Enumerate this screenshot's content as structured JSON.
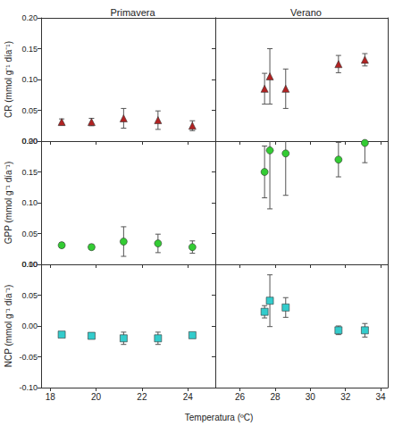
{
  "chart_data": [
    {
      "type": "scatter",
      "title": "Primavera",
      "ylabel": "CR (mmol g⁻¹ día⁻¹)",
      "marker": "triangle",
      "color": "#b22222",
      "xlim": [
        17.6,
        25.2
      ],
      "xticks": [
        18,
        20,
        22,
        24
      ],
      "ylim": [
        0,
        0.2
      ],
      "yticks": [
        {
          "value": 0,
          "label": "0.00"
        },
        {
          "value": 0.05,
          "label": "0.05"
        },
        {
          "value": 0.1,
          "label": "0.10"
        },
        {
          "value": 0.15,
          "label": "0.15"
        },
        {
          "value": 0.2,
          "label": "0.20"
        }
      ],
      "tick_labels": "y",
      "x": [
        18.5,
        19.8,
        21.2,
        22.7,
        24.2
      ],
      "values": [
        0.031,
        0.031,
        0.037,
        0.034,
        0.025
      ],
      "errors": [
        0.005,
        0.006,
        0.016,
        0.015,
        0.008
      ]
    },
    {
      "type": "scatter",
      "title": "Verano",
      "marker": "triangle",
      "color": "#b22222",
      "xlim": [
        24.6,
        34.4
      ],
      "xticks": [
        26,
        28,
        30,
        32,
        34
      ],
      "ylim": [
        0,
        0.2
      ],
      "yticks": [
        {
          "value": 0,
          "label": "0.00"
        },
        {
          "value": 0.05,
          "label": "0.05"
        },
        {
          "value": 0.1,
          "label": "0.10"
        },
        {
          "value": 0.15,
          "label": "0.15"
        },
        {
          "value": 0.2,
          "label": "0.20"
        }
      ],
      "tick_labels": false,
      "x": [
        27.4,
        27.7,
        28.6,
        31.6,
        33.1
      ],
      "values": [
        0.085,
        0.105,
        0.085,
        0.125,
        0.132
      ],
      "errors": [
        0.025,
        0.045,
        0.032,
        0.014,
        0.01
      ]
    },
    {
      "type": "scatter",
      "ylabel": "GPP (mmol g⁻¹ día⁻¹)",
      "marker": "circle",
      "color": "#33cc33",
      "xlim": [
        17.6,
        25.2
      ],
      "xticks": [
        18,
        20,
        22,
        24
      ],
      "ylim": [
        0,
        0.2
      ],
      "yticks": [
        {
          "value": 0,
          "label": "0.00"
        },
        {
          "value": 0.05,
          "label": "0.05"
        },
        {
          "value": 0.1,
          "label": "0.10"
        },
        {
          "value": 0.15,
          "label": "0.15"
        },
        {
          "value": 0.2,
          "label": "0.20"
        }
      ],
      "tick_labels": "y",
      "x": [
        18.5,
        19.8,
        21.2,
        22.7,
        24.2
      ],
      "values": [
        0.031,
        0.028,
        0.037,
        0.034,
        0.028
      ],
      "errors": [
        0.004,
        0.004,
        0.024,
        0.015,
        0.01
      ]
    },
    {
      "type": "scatter",
      "marker": "circle",
      "color": "#33cc33",
      "xlim": [
        24.6,
        34.4
      ],
      "xticks": [
        26,
        28,
        30,
        32,
        34
      ],
      "ylim": [
        0,
        0.2
      ],
      "yticks": [
        {
          "value": 0,
          "label": "0.00"
        },
        {
          "value": 0.05,
          "label": "0.05"
        },
        {
          "value": 0.1,
          "label": "0.10"
        },
        {
          "value": 0.15,
          "label": "0.15"
        },
        {
          "value": 0.2,
          "label": "0.20"
        }
      ],
      "tick_labels": false,
      "x": [
        27.4,
        27.7,
        28.6,
        31.6,
        33.1
      ],
      "values": [
        0.15,
        0.185,
        0.18,
        0.17,
        0.197
      ],
      "errors": [
        0.042,
        0.095,
        0.068,
        0.028,
        0.032
      ]
    },
    {
      "type": "scatter",
      "ylabel": "NCP (mmol g⁻¹ día⁻¹)",
      "xlabel": "Temperatura (ºC)",
      "marker": "square",
      "color": "#33cccc",
      "xlim": [
        17.6,
        25.2
      ],
      "xticks": [
        18,
        20,
        22,
        24
      ],
      "ylim": [
        -0.1,
        0.1
      ],
      "yticks": [
        {
          "value": -0.1,
          "label": "-0.10"
        },
        {
          "value": -0.05,
          "label": "-0.05"
        },
        {
          "value": 0,
          "label": "0.00"
        },
        {
          "value": 0.05,
          "label": "0.05"
        },
        {
          "value": 0.1,
          "label": "0.10"
        }
      ],
      "tick_labels": true,
      "x": [
        18.5,
        19.8,
        21.2,
        22.7,
        24.2
      ],
      "values": [
        -0.014,
        -0.016,
        -0.02,
        -0.02,
        -0.015
      ],
      "errors": [
        0.003,
        0.005,
        0.01,
        0.01,
        0.004
      ]
    },
    {
      "type": "scatter",
      "marker": "square",
      "color": "#33cccc",
      "xlim": [
        24.6,
        34.4
      ],
      "xticks": [
        26,
        28,
        30,
        32,
        34
      ],
      "ylim": [
        -0.1,
        0.1
      ],
      "yticks": [
        {
          "value": -0.1,
          "label": "-0.10"
        },
        {
          "value": -0.05,
          "label": "-0.05"
        },
        {
          "value": 0,
          "label": "0.00"
        },
        {
          "value": 0.05,
          "label": "0.05"
        },
        {
          "value": 0.1,
          "label": "0.10"
        }
      ],
      "tick_labels": "x",
      "x": [
        27.4,
        27.7,
        28.6,
        31.6,
        33.1
      ],
      "values": [
        0.023,
        0.041,
        0.03,
        -0.007,
        -0.007
      ],
      "errors": [
        0.01,
        0.042,
        0.016,
        0.007,
        0.011
      ]
    }
  ]
}
